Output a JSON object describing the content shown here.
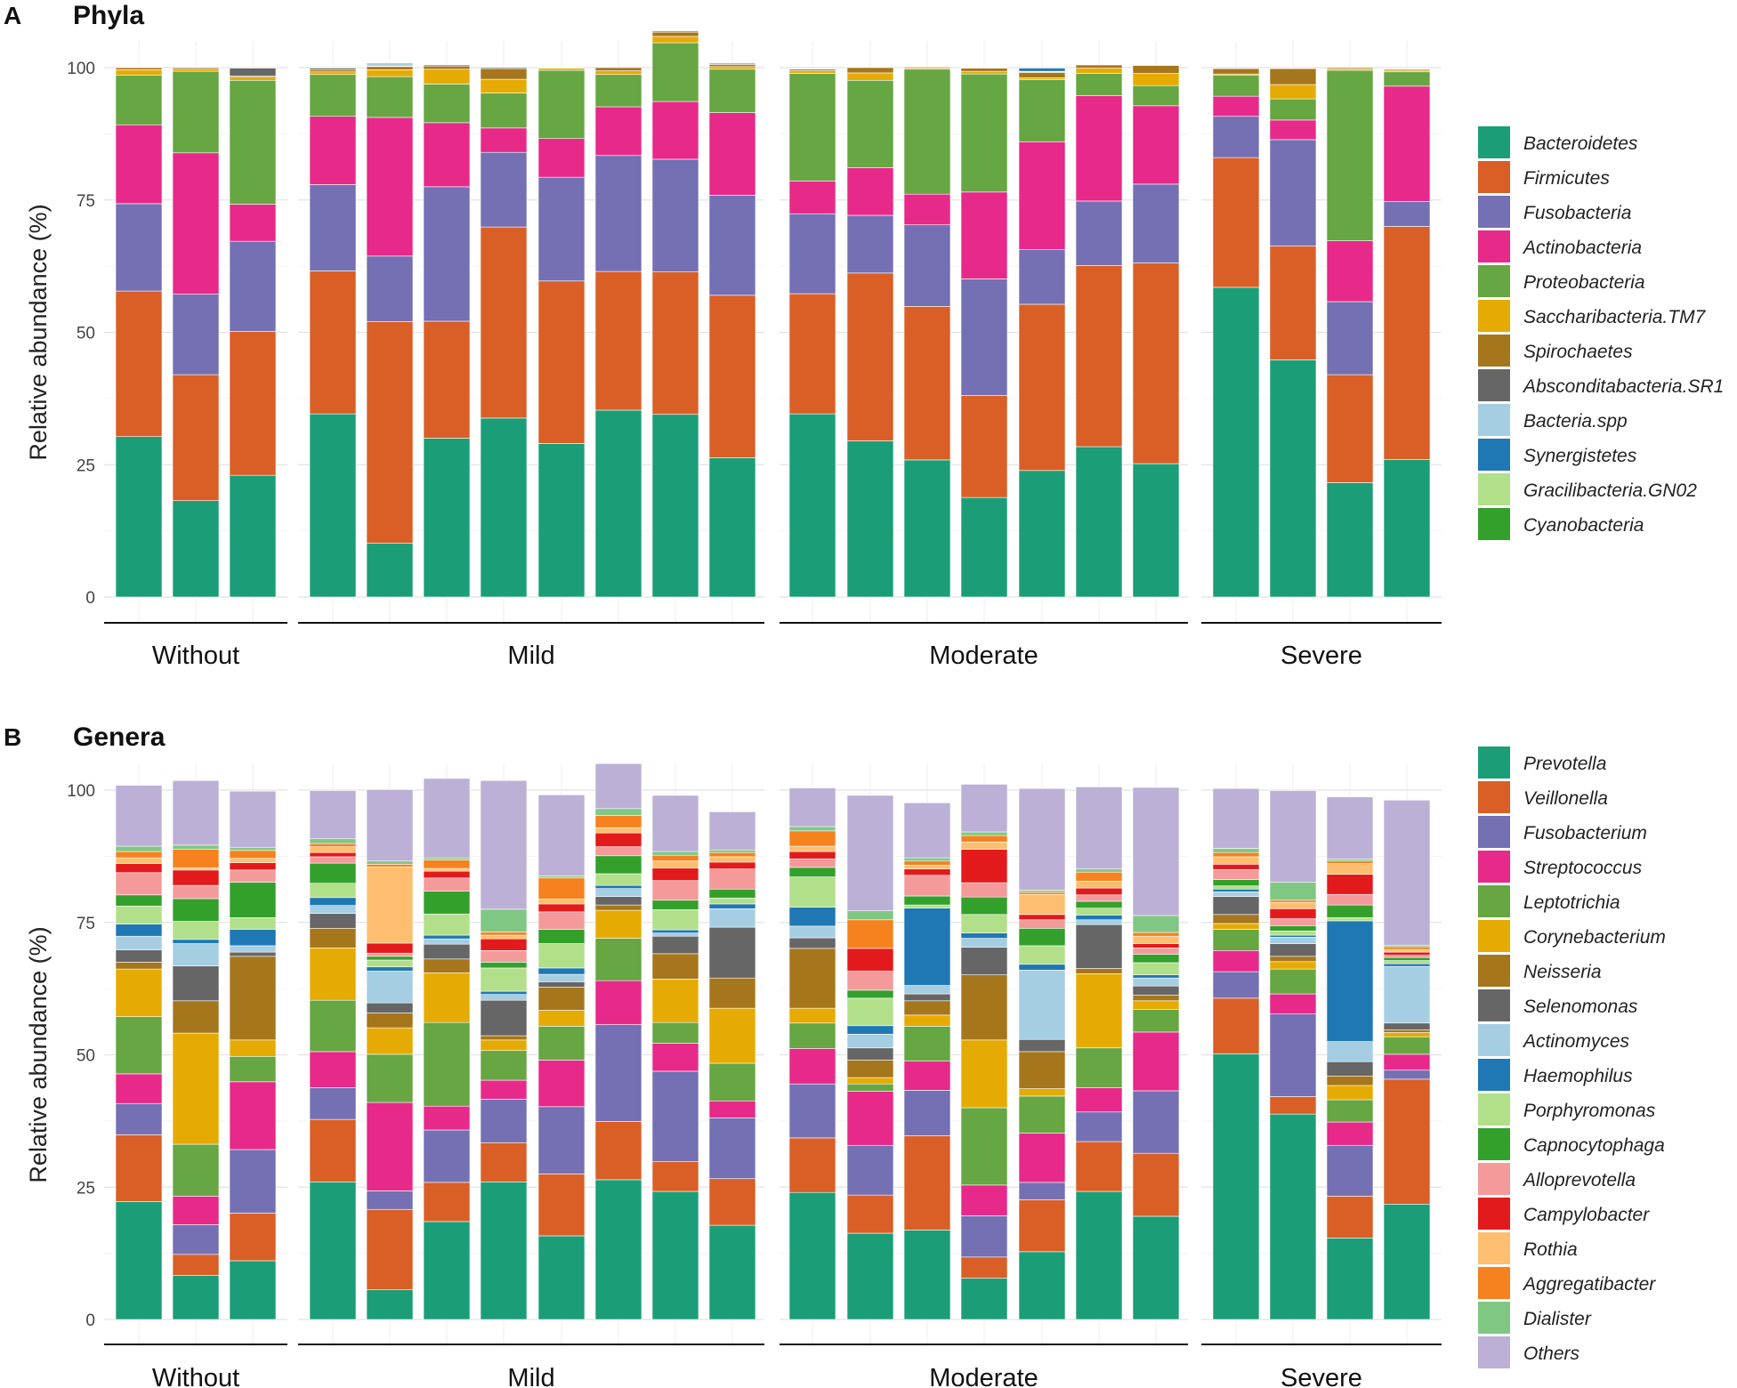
{
  "figure": {
    "panels": [
      {
        "letter": "A",
        "title": "Phyla"
      },
      {
        "letter": "B",
        "title": "Genera"
      }
    ]
  },
  "chart_data": [
    {
      "type": "bar",
      "stacked": true,
      "title": "Phyla",
      "panel": "A",
      "ylabel": "Relative abundance (%)",
      "xlabel": "",
      "ylim": [
        0,
        100
      ],
      "yticks": [
        0,
        25,
        50,
        75,
        100
      ],
      "grid": true,
      "legend_position": "right",
      "groups": [
        {
          "name": "Without",
          "n": 3
        },
        {
          "name": "Mild",
          "n": 8
        },
        {
          "name": "Moderate",
          "n": 7
        },
        {
          "name": "Severe",
          "n": 4
        }
      ],
      "series": [
        {
          "name": "Bacteroidetes",
          "color": "#1b9e77",
          "values": [
            30.3,
            18.2,
            23,
            34.6,
            10.2,
            30,
            33.8,
            29,
            35.3,
            34.5,
            26.3,
            34.6,
            29.5,
            25.9,
            18.8,
            23.9,
            28.4,
            25.2,
            58.5,
            44.8,
            21.6,
            26
          ]
        },
        {
          "name": "Firmicutes",
          "color": "#d95f27",
          "values": [
            27.5,
            23.8,
            27.2,
            27,
            41.8,
            22.1,
            36.1,
            30.7,
            26.2,
            26.9,
            30.7,
            22.7,
            31.7,
            29,
            19.3,
            31.4,
            34.2,
            37.9,
            24.5,
            21.5,
            20.4,
            44
          ]
        },
        {
          "name": "Fusobacteria",
          "color": "#7570b3",
          "values": [
            16.5,
            15.2,
            17,
            16.3,
            12.4,
            25.4,
            14.1,
            19.6,
            21.9,
            21.3,
            18.9,
            15.1,
            10.9,
            15.4,
            22,
            10.3,
            12.2,
            14.9,
            7.8,
            20.1,
            13.8,
            4.7
          ]
        },
        {
          "name": "Actinobacteria",
          "color": "#e7298a",
          "values": [
            14.9,
            26.7,
            7,
            12.9,
            26.2,
            12.1,
            4.6,
            7.3,
            9.2,
            10.9,
            15.6,
            6.2,
            9,
            5.8,
            16.4,
            20.4,
            19.9,
            14.8,
            3.8,
            3.7,
            11.5,
            21.8
          ]
        },
        {
          "name": "Proteobacteria",
          "color": "#66a643",
          "values": [
            9.4,
            15.4,
            23.4,
            7.9,
            7.7,
            7.3,
            6.6,
            12.9,
            6.1,
            11.1,
            8.2,
            20.3,
            16.5,
            23.6,
            22.3,
            11.7,
            4.2,
            3.8,
            4,
            4,
            32.2,
            2.7
          ]
        },
        {
          "name": "Saccharibacteria.TM7",
          "color": "#e6ab02",
          "values": [
            1,
            0.4,
            0.6,
            0.5,
            1.3,
            2.8,
            2.6,
            0.4,
            0.7,
            1.2,
            0.5,
            0.5,
            1.4,
            0.2,
            0.5,
            0.4,
            1,
            2.3,
            0.2,
            2.7,
            0.3,
            0.3
          ]
        },
        {
          "name": "Spirochaetes",
          "color": "#a6761d",
          "values": [
            0.4,
            0.3,
            0.2,
            0.4,
            0.6,
            0.6,
            2,
            0.1,
            0.6,
            0.8,
            0.4,
            0.3,
            1,
            0.2,
            0.6,
            1,
            0.6,
            1.5,
            1,
            3,
            0.2,
            0.2
          ]
        },
        {
          "name": "Absconditabacteria.SR1",
          "color": "#666666",
          "values": [
            0.1,
            0.1,
            1.5,
            0.3,
            0.1,
            0.2,
            0.2,
            0,
            0,
            0.2,
            0.2,
            0,
            0,
            0,
            0.1,
            0.1,
            0,
            0,
            0,
            0.1,
            0,
            0
          ]
        },
        {
          "name": "Bacteria.spp",
          "color": "#a6cee3",
          "values": [
            0,
            0,
            0,
            0,
            0.6,
            0,
            0,
            0,
            0,
            0,
            0,
            0,
            0,
            0,
            0,
            0.1,
            0,
            0,
            0,
            0,
            0,
            0
          ]
        },
        {
          "name": "Synergistetes",
          "color": "#1f78b4",
          "values": [
            0,
            0,
            0,
            0,
            0,
            0,
            0,
            0,
            0,
            0,
            0,
            0,
            0,
            0,
            0,
            0.6,
            0,
            0,
            0,
            0,
            0,
            0
          ]
        },
        {
          "name": "Gracilibacteria.GN02",
          "color": "#b2df8a",
          "values": [
            0,
            0,
            0,
            0,
            0,
            0,
            0,
            0,
            0,
            0,
            0,
            0,
            0,
            0,
            0,
            0,
            0,
            0,
            0,
            0,
            0,
            0
          ]
        },
        {
          "name": "Cyanobacteria",
          "color": "#33a02c",
          "values": [
            0,
            0,
            0,
            0,
            0,
            0,
            0,
            0,
            0,
            0,
            0,
            0,
            0,
            0,
            0,
            0,
            0,
            0,
            0,
            0,
            0,
            0
          ]
        }
      ]
    },
    {
      "type": "bar",
      "stacked": true,
      "title": "Genera",
      "panel": "B",
      "ylabel": "Relative abundance (%)",
      "xlabel": "",
      "ylim": [
        0,
        100
      ],
      "yticks": [
        0,
        25,
        50,
        75,
        100
      ],
      "grid": true,
      "legend_position": "right",
      "groups": [
        {
          "name": "Without",
          "n": 3
        },
        {
          "name": "Mild",
          "n": 8
        },
        {
          "name": "Moderate",
          "n": 7
        },
        {
          "name": "Severe",
          "n": 4
        }
      ],
      "series": [
        {
          "name": "Prevotella",
          "color": "#1b9e77",
          "values": [
            22.3,
            8.3,
            11.1,
            26,
            5.6,
            18.5,
            26,
            15.8,
            26.4,
            24.2,
            17.8,
            24,
            16.3,
            16.9,
            7.8,
            12.8,
            24.2,
            19.5,
            50.2,
            38.8,
            15.4,
            21.8
          ]
        },
        {
          "name": "Veillonella",
          "color": "#d95f27",
          "values": [
            12.6,
            4,
            9,
            11.8,
            15.2,
            7.4,
            7.4,
            11.7,
            11,
            5.6,
            8.8,
            10.3,
            7.2,
            17.8,
            4,
            9.8,
            9.4,
            11.9,
            10.5,
            3.3,
            7.9,
            23.6
          ]
        },
        {
          "name": "Fusobacterium",
          "color": "#7570b3",
          "values": [
            5.9,
            5.6,
            12,
            6,
            3.5,
            9.9,
            8.2,
            12.7,
            18.3,
            17.1,
            11.5,
            10.2,
            9.4,
            8.6,
            7.8,
            3.3,
            5.6,
            11.8,
            5,
            15.6,
            9.6,
            1.7
          ]
        },
        {
          "name": "Streptococcus",
          "color": "#e7298a",
          "values": [
            5.6,
            5.4,
            12.8,
            6.8,
            16.7,
            4.5,
            3.6,
            8.8,
            8.3,
            5.3,
            3.2,
            6.7,
            10.2,
            5.5,
            5.8,
            9.3,
            4.6,
            11.1,
            4,
            3.8,
            4.4,
            3
          ]
        },
        {
          "name": "Leptotrichia",
          "color": "#66a643",
          "values": [
            10.8,
            9.8,
            4.8,
            9.7,
            9.1,
            15.8,
            5.6,
            6.4,
            8,
            3.9,
            7.1,
            4.8,
            1.4,
            6.6,
            14.6,
            7,
            7.5,
            4.3,
            4,
            4.7,
            4.2,
            3.3
          ]
        },
        {
          "name": "Corynebacterium",
          "color": "#e6ab02",
          "values": [
            9,
            21,
            3.1,
            9.9,
            5,
            9.4,
            2,
            3,
            5.3,
            8.2,
            10.4,
            2.8,
            1.2,
            2.1,
            12.8,
            1.4,
            14,
            1.6,
            1.1,
            1.4,
            2.7,
            0.8
          ]
        },
        {
          "name": "Neisseria",
          "color": "#a6761d",
          "values": [
            1.3,
            6.1,
            15.8,
            3.7,
            2.8,
            2.6,
            0.8,
            4.4,
            1,
            4.8,
            5.7,
            11.3,
            3.3,
            2.7,
            12.3,
            7,
            1,
            1.1,
            1.7,
            1,
            1.8,
            0.5
          ]
        },
        {
          "name": "Selenomonas",
          "color": "#666666",
          "values": [
            2.3,
            6.6,
            0.8,
            2.8,
            1.9,
            2.8,
            6.7,
            1,
            1.6,
            3.3,
            9.6,
            2,
            2.3,
            1.3,
            5.2,
            2.3,
            8.3,
            1.7,
            3.4,
            2.4,
            2.7,
            1.3
          ]
        },
        {
          "name": "Actinomyces",
          "color": "#a6cee3",
          "values": [
            2.6,
            4.2,
            1.2,
            1.5,
            6,
            1,
            1.1,
            1.4,
            1.5,
            0.6,
            3.5,
            2.2,
            2.6,
            1.6,
            1.7,
            13.1,
            0.9,
            1.5,
            0.9,
            1.2,
            3.8,
            10.7
          ]
        },
        {
          "name": "Haemophilus",
          "color": "#1f78b4",
          "values": [
            2.3,
            0.8,
            3.1,
            1.5,
            0.8,
            0.7,
            0.6,
            1.2,
            0.6,
            0.6,
            0.9,
            3.6,
            1.6,
            14.6,
            1,
            1.1,
            0.9,
            0.6,
            0.5,
            0.4,
            22.8,
            0.5
          ]
        },
        {
          "name": "Porphyromonas",
          "color": "#b2df8a",
          "values": [
            3.4,
            3.4,
            2.2,
            2.7,
            1.3,
            4,
            4.4,
            4.6,
            2.2,
            3.8,
            1.1,
            5.7,
            5.2,
            0.6,
            3.5,
            3.5,
            1.3,
            2.3,
            0.6,
            0.8,
            0.6,
            0.6
          ]
        },
        {
          "name": "Capnocytophaga",
          "color": "#33a02c",
          "values": [
            2.1,
            4.3,
            6.7,
            3.8,
            0.7,
            4.3,
            1.1,
            2.7,
            3.4,
            1.8,
            1.7,
            1.8,
            1.5,
            1.7,
            3.3,
            3.3,
            1.3,
            1.6,
            1.2,
            1,
            2.4,
            0.6
          ]
        },
        {
          "name": "Alloprevotella",
          "color": "#f49a9a",
          "values": [
            4.2,
            2.5,
            2.3,
            1.2,
            0.6,
            2.5,
            2.2,
            3.3,
            1.7,
            3.7,
            3.8,
            1.6,
            3.6,
            3.9,
            2.7,
            1.6,
            1.2,
            1.2,
            1.9,
            1.3,
            2,
            0.4
          ]
        },
        {
          "name": "Campylobacter",
          "color": "#e31a1c",
          "values": [
            1.7,
            2.9,
            1.4,
            0.8,
            1.9,
            1.3,
            2.2,
            1.5,
            2.6,
            2.4,
            1.3,
            1.4,
            4.3,
            1.2,
            6.3,
            1,
            1.3,
            0.8,
            1,
            1.9,
            3.8,
            0.6
          ]
        },
        {
          "name": "Rothia",
          "color": "#fdbf6f",
          "values": [
            1.1,
            0.4,
            0.8,
            1.1,
            14.4,
            0.5,
            0.7,
            0.9,
            1,
            1.3,
            1,
            1,
            0,
            0.7,
            1.4,
            3.8,
            1.3,
            1.4,
            1.4,
            1.2,
            2,
            0.5
          ]
        },
        {
          "name": "Aggregatibacter",
          "color": "#f5821f",
          "values": [
            1.2,
            3.5,
            1.5,
            0.6,
            0.5,
            1.6,
            0.6,
            4,
            2.3,
            1.1,
            0.8,
            2.9,
            5.4,
            0.8,
            1.2,
            0.4,
            1.7,
            0.7,
            0.8,
            0.4,
            0.5,
            0.5
          ]
        },
        {
          "name": "Dialister",
          "color": "#81c784",
          "values": [
            1,
            0.8,
            0.6,
            0.9,
            0.6,
            0.4,
            4.3,
            0.4,
            1.3,
            0.7,
            0.5,
            0.8,
            1.7,
            0.6,
            0.7,
            0.4,
            0.6,
            3.2,
            0.8,
            3.4,
            0.4,
            0.3
          ]
        },
        {
          "name": "Others",
          "color": "#bcb0d6",
          "values": [
            11.5,
            12.2,
            10.6,
            9.1,
            13.5,
            15,
            24.3,
            15.3,
            8.5,
            10.6,
            7.2,
            7.3,
            21.8,
            10.4,
            9,
            19.2,
            15.5,
            24.2,
            11.3,
            17.3,
            11.7,
            27.4
          ]
        }
      ]
    }
  ]
}
